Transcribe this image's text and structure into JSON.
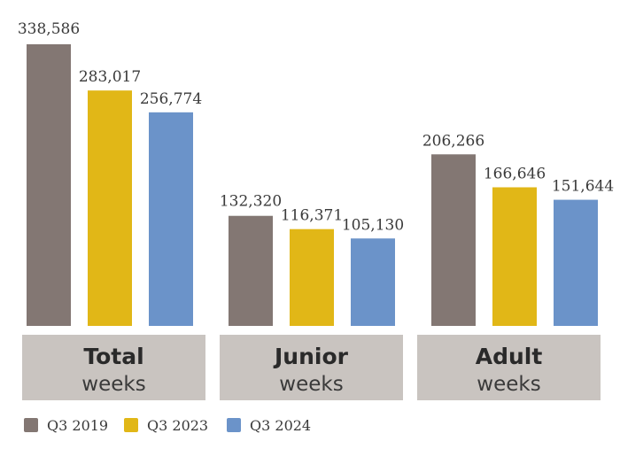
{
  "chart_data": {
    "type": "bar",
    "categories": [
      "Total",
      "Junior",
      "Adult"
    ],
    "category_subtitle": "weeks",
    "series": [
      {
        "name": "Q3 2019",
        "color": "#837773",
        "values": [
          338586,
          132320,
          206266
        ]
      },
      {
        "name": "Q3 2023",
        "color": "#e1b717",
        "values": [
          283017,
          116371,
          166646
        ]
      },
      {
        "name": "Q3 2024",
        "color": "#6b93c9",
        "values": [
          256774,
          105130,
          151644
        ]
      }
    ],
    "value_labels": [
      [
        "338,586",
        "132,320",
        "206,266"
      ],
      [
        "283,017",
        "116,371",
        "166,646"
      ],
      [
        "256,774",
        "105,130",
        "151,644"
      ]
    ],
    "ylim": [
      0,
      340000
    ],
    "grid": false,
    "legend_position": "bottom-left"
  }
}
